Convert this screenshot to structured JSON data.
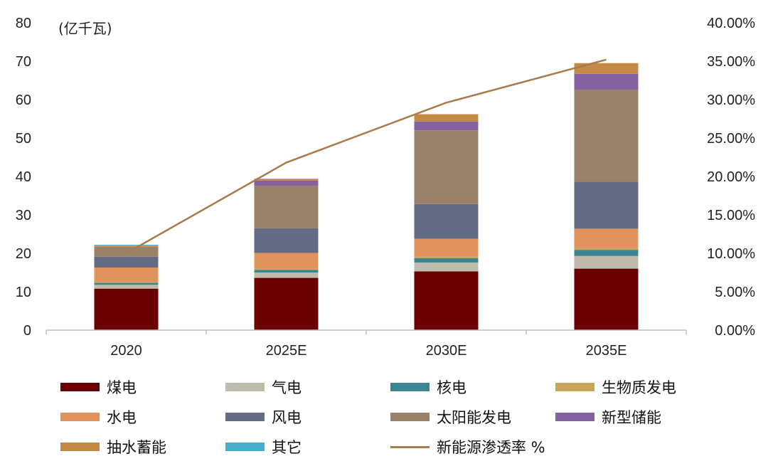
{
  "chart_data": {
    "type": "bar",
    "stacked": true,
    "unit_label": "(亿千瓦)",
    "categories": [
      "2020",
      "2025E",
      "2030E",
      "2035E"
    ],
    "y_left": {
      "min": 0,
      "max": 80,
      "ticks": [
        "0",
        "10",
        "20",
        "30",
        "40",
        "50",
        "60",
        "70",
        "80"
      ]
    },
    "y_right": {
      "min": 0,
      "max": 0.4,
      "ticks": [
        "0.00%",
        "5.00%",
        "10.00%",
        "15.00%",
        "20.00%",
        "25.00%",
        "30.00%",
        "35.00%",
        "40.00%"
      ]
    },
    "series": [
      {
        "name": "煤电",
        "color": "#6b0000",
        "values": [
          10.8,
          13.6,
          15.3,
          16.0
        ]
      },
      {
        "name": "气电",
        "color": "#bfbcad",
        "values": [
          1.0,
          1.4,
          2.3,
          3.3
        ]
      },
      {
        "name": "核电",
        "color": "#3b8590",
        "values": [
          0.5,
          0.7,
          1.1,
          1.6
        ]
      },
      {
        "name": "生物质发电",
        "color": "#c9a55c",
        "values": [
          0.3,
          0.4,
          0.4,
          0.5
        ]
      },
      {
        "name": "水电",
        "color": "#e0935c",
        "values": [
          3.7,
          4.0,
          4.7,
          5.0
        ]
      },
      {
        "name": "风电",
        "color": "#636b85",
        "values": [
          2.8,
          6.4,
          9.0,
          12.2
        ]
      },
      {
        "name": "太阳能发电",
        "color": "#9a826a",
        "values": [
          2.6,
          11.1,
          19.2,
          24.0
        ]
      },
      {
        "name": "新型储能",
        "color": "#8461a0",
        "values": [
          0.0,
          1.3,
          2.3,
          4.1
        ]
      },
      {
        "name": "抽水蓄能",
        "color": "#c28a45",
        "values": [
          0.3,
          0.5,
          1.9,
          2.8
        ]
      },
      {
        "name": "其它",
        "color": "#46b0cc",
        "values": [
          0.2,
          0.0,
          0.0,
          0.0
        ]
      }
    ],
    "line_series": {
      "name": "新能源渗透率 %",
      "color": "#a87a4c",
      "axis": "right",
      "values": [
        0.1,
        0.218,
        0.296,
        0.352
      ]
    },
    "legend_position": "bottom"
  }
}
